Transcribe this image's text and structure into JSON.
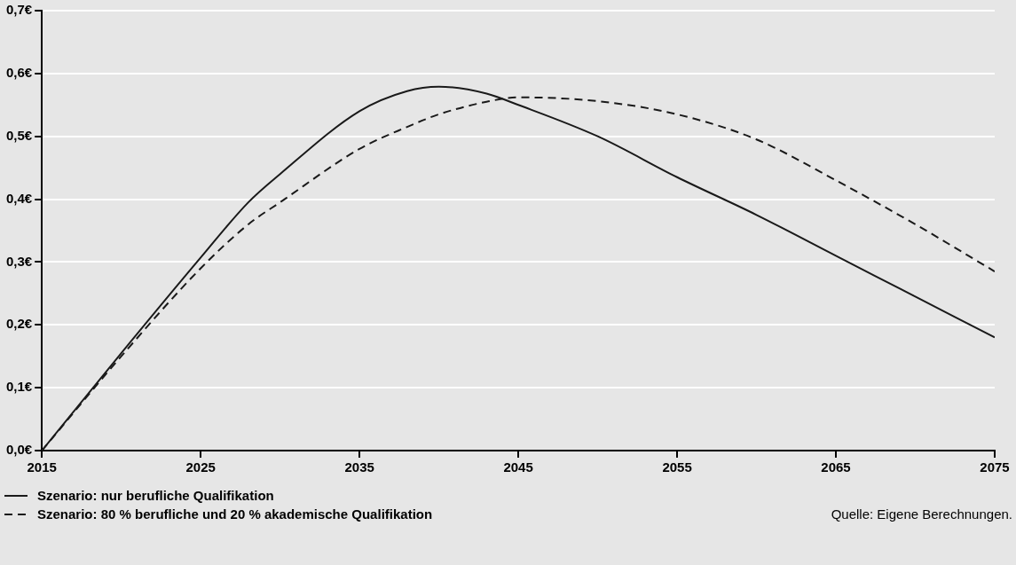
{
  "chart_data": {
    "type": "line",
    "x": [
      2015,
      2020,
      2025,
      2028,
      2030,
      2035,
      2038,
      2040,
      2043,
      2045,
      2050,
      2055,
      2060,
      2065,
      2070,
      2075
    ],
    "series": [
      {
        "name": "Szenario: nur berufliche Qualifikation",
        "color": "#1a1a1a",
        "line_style": "solid",
        "values": [
          0,
          0.155,
          0.307,
          0.395,
          0.44,
          0.54,
          0.572,
          0.579,
          0.568,
          0.55,
          0.5,
          0.435,
          0.375,
          0.31,
          0.245,
          0.18
        ]
      },
      {
        "name": "Szenario: 80 % berufliche und 20 % akademische Qualifikation",
        "color": "#1a1a1a",
        "line_style": "dashed",
        "values": [
          0,
          0.15,
          0.29,
          0.36,
          0.395,
          0.48,
          0.515,
          0.535,
          0.555,
          0.562,
          0.556,
          0.535,
          0.495,
          0.43,
          0.36,
          0.285
        ]
      }
    ],
    "xlim": [
      2015,
      2075
    ],
    "xticks": [
      2015,
      2025,
      2035,
      2045,
      2055,
      2065,
      2075
    ],
    "ylim": [
      0,
      0.7
    ],
    "yticks": [
      {
        "value": 0,
        "label": "0,0€"
      },
      {
        "value": 0.1,
        "label": "0,1€"
      },
      {
        "value": 0.2,
        "label": "0,2€"
      },
      {
        "value": 0.3,
        "label": "0,3€"
      },
      {
        "value": 0.4,
        "label": "0,4€"
      },
      {
        "value": 0.5,
        "label": "0,5€"
      },
      {
        "value": 0.6,
        "label": "0,6€"
      },
      {
        "value": 0.7,
        "label": "0,7€"
      }
    ],
    "grid": "y",
    "legend": "bottom left",
    "marker": "none",
    "annotations": [
      "Quelle: Eigene Berechnungen."
    ]
  }
}
